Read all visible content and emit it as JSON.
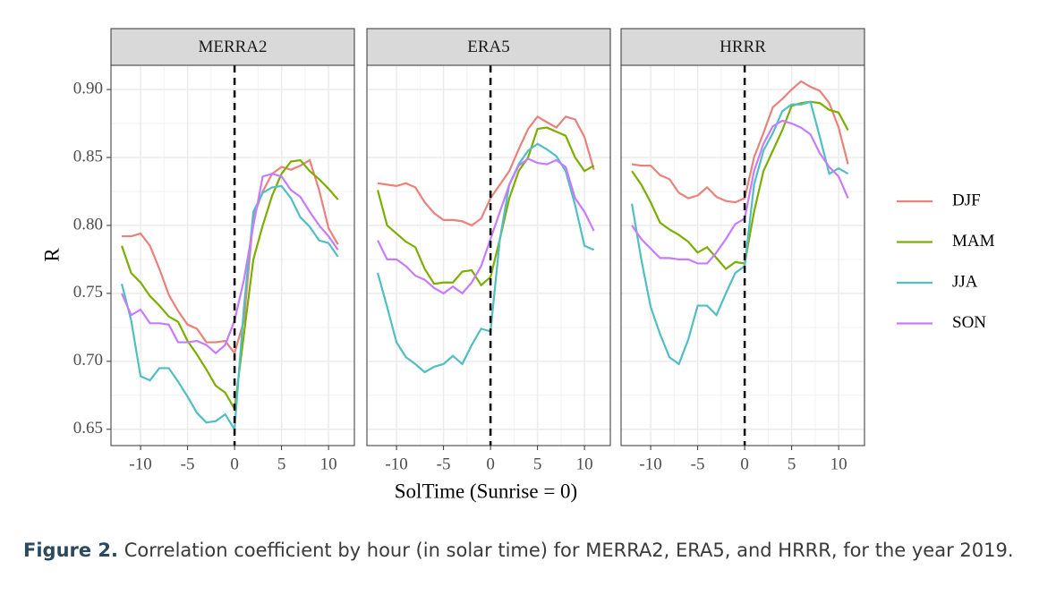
{
  "axes": {
    "xlabel": "SolTime (Sunrise = 0)",
    "ylabel": "R"
  },
  "caption": {
    "label": "Figure 2.",
    "text": "Correlation coefficient by hour (in solar time) for MERRA2, ERA5, and HRRR, for the year 2019."
  },
  "chart_data": [
    {
      "type": "line",
      "title": "MERRA2",
      "legend": "right",
      "grid": true,
      "vline": 0,
      "x": [
        -12,
        -11,
        -10,
        -9,
        -8,
        -7,
        -6,
        -5,
        -4,
        -3,
        -2,
        -1,
        0,
        1,
        2,
        3,
        4,
        5,
        6,
        7,
        8,
        9,
        10,
        11
      ],
      "xlim": [
        -13.15,
        12.75
      ],
      "xticks": [
        -10,
        -5,
        0,
        5,
        10
      ],
      "ylim": [
        0.638,
        0.9178
      ],
      "yticks": [
        {
          "value": 0.65,
          "label": "0.65"
        },
        {
          "value": 0.7,
          "label": "0.70"
        },
        {
          "value": 0.75,
          "label": "0.75"
        },
        {
          "value": 0.8,
          "label": "0.80"
        },
        {
          "value": 0.85,
          "label": "0.85"
        },
        {
          "value": 0.9,
          "label": "0.90"
        }
      ],
      "series": [
        {
          "name": "DJF",
          "color": "#e8827a",
          "values": [
            0.792,
            0.792,
            0.794,
            0.785,
            0.768,
            0.749,
            0.737,
            0.727,
            0.724,
            0.714,
            0.714,
            0.715,
            0.706,
            0.73,
            0.806,
            0.825,
            0.838,
            0.843,
            0.841,
            0.844,
            0.848,
            0.826,
            0.798,
            0.786
          ]
        },
        {
          "name": "MAM",
          "color": "#7cae00",
          "values": [
            0.785,
            0.765,
            0.758,
            0.748,
            0.741,
            0.733,
            0.729,
            0.715,
            0.705,
            0.694,
            0.682,
            0.677,
            0.665,
            0.72,
            0.775,
            0.8,
            0.822,
            0.838,
            0.847,
            0.848,
            0.84,
            0.834,
            0.827,
            0.819
          ]
        },
        {
          "name": "JJA",
          "color": "#4fbfc4",
          "values": [
            0.757,
            0.73,
            0.689,
            0.686,
            0.695,
            0.695,
            0.685,
            0.674,
            0.662,
            0.655,
            0.656,
            0.661,
            0.65,
            0.74,
            0.81,
            0.824,
            0.828,
            0.829,
            0.82,
            0.806,
            0.799,
            0.789,
            0.787,
            0.777
          ]
        },
        {
          "name": "SON",
          "color": "#c77cff",
          "values": [
            0.75,
            0.734,
            0.738,
            0.728,
            0.728,
            0.727,
            0.714,
            0.714,
            0.715,
            0.712,
            0.706,
            0.712,
            0.73,
            0.76,
            0.8,
            0.836,
            0.838,
            0.836,
            0.826,
            0.821,
            0.81,
            0.8,
            0.792,
            0.782
          ]
        }
      ]
    },
    {
      "type": "line",
      "title": "ERA5",
      "grid": true,
      "vline": 0,
      "x": [
        -12,
        -11,
        -10,
        -9,
        -8,
        -7,
        -6,
        -5,
        -4,
        -3,
        -2,
        -1,
        0,
        1,
        2,
        3,
        4,
        5,
        6,
        7,
        8,
        9,
        10,
        11
      ],
      "xlim": [
        -13.15,
        12.75
      ],
      "xticks": [
        -10,
        -5,
        0,
        5,
        10
      ],
      "ylim": [
        0.638,
        0.9178
      ],
      "yticks": [
        0.65,
        0.7,
        0.75,
        0.8,
        0.85,
        0.9
      ],
      "series": [
        {
          "name": "DJF",
          "color": "#e8827a",
          "values": [
            0.831,
            0.83,
            0.829,
            0.831,
            0.828,
            0.817,
            0.809,
            0.804,
            0.804,
            0.803,
            0.8,
            0.805,
            0.82,
            0.83,
            0.84,
            0.856,
            0.871,
            0.88,
            0.876,
            0.872,
            0.88,
            0.878,
            0.865,
            0.841
          ]
        },
        {
          "name": "MAM",
          "color": "#7cae00",
          "values": [
            0.826,
            0.8,
            0.794,
            0.788,
            0.784,
            0.768,
            0.757,
            0.758,
            0.758,
            0.766,
            0.767,
            0.756,
            0.762,
            0.79,
            0.82,
            0.84,
            0.85,
            0.871,
            0.872,
            0.869,
            0.866,
            0.85,
            0.84,
            0.844
          ]
        },
        {
          "name": "JJA",
          "color": "#4fbfc4",
          "values": [
            0.765,
            0.74,
            0.714,
            0.703,
            0.698,
            0.692,
            0.696,
            0.698,
            0.704,
            0.698,
            0.712,
            0.724,
            0.722,
            0.79,
            0.83,
            0.845,
            0.855,
            0.86,
            0.856,
            0.851,
            0.84,
            0.815,
            0.785,
            0.782
          ]
        },
        {
          "name": "SON",
          "color": "#c77cff",
          "values": [
            0.789,
            0.775,
            0.775,
            0.77,
            0.763,
            0.76,
            0.754,
            0.75,
            0.755,
            0.75,
            0.758,
            0.77,
            0.79,
            0.81,
            0.83,
            0.844,
            0.849,
            0.846,
            0.845,
            0.848,
            0.843,
            0.82,
            0.81,
            0.796
          ]
        }
      ]
    },
    {
      "type": "line",
      "title": "HRRR",
      "grid": true,
      "vline": 0,
      "x": [
        -12,
        -11,
        -10,
        -9,
        -8,
        -7,
        -6,
        -5,
        -4,
        -3,
        -2,
        -1,
        0,
        1,
        2,
        3,
        4,
        5,
        6,
        7,
        8,
        9,
        10,
        11
      ],
      "xlim": [
        -13.15,
        12.75
      ],
      "xticks": [
        -10,
        -5,
        0,
        5,
        10
      ],
      "ylim": [
        0.638,
        0.9178
      ],
      "yticks": [
        0.65,
        0.7,
        0.75,
        0.8,
        0.85,
        0.9
      ],
      "series": [
        {
          "name": "DJF",
          "color": "#e8827a",
          "values": [
            0.845,
            0.844,
            0.844,
            0.837,
            0.834,
            0.824,
            0.82,
            0.822,
            0.828,
            0.821,
            0.818,
            0.817,
            0.82,
            0.85,
            0.868,
            0.887,
            0.893,
            0.9,
            0.906,
            0.902,
            0.899,
            0.89,
            0.872,
            0.845
          ]
        },
        {
          "name": "MAM",
          "color": "#7cae00",
          "values": [
            0.84,
            0.83,
            0.817,
            0.802,
            0.797,
            0.793,
            0.788,
            0.78,
            0.784,
            0.776,
            0.768,
            0.773,
            0.772,
            0.81,
            0.84,
            0.855,
            0.87,
            0.888,
            0.89,
            0.891,
            0.89,
            0.885,
            0.883,
            0.87
          ]
        },
        {
          "name": "JJA",
          "color": "#4fbfc4",
          "values": [
            0.816,
            0.775,
            0.74,
            0.72,
            0.703,
            0.698,
            0.716,
            0.741,
            0.741,
            0.734,
            0.75,
            0.765,
            0.77,
            0.83,
            0.855,
            0.868,
            0.884,
            0.889,
            0.889,
            0.891,
            0.865,
            0.838,
            0.842,
            0.838
          ]
        },
        {
          "name": "SON",
          "color": "#c77cff",
          "values": [
            0.8,
            0.79,
            0.783,
            0.776,
            0.776,
            0.775,
            0.775,
            0.772,
            0.772,
            0.78,
            0.79,
            0.801,
            0.805,
            0.84,
            0.86,
            0.873,
            0.877,
            0.875,
            0.872,
            0.867,
            0.853,
            0.843,
            0.836,
            0.82
          ]
        }
      ]
    }
  ]
}
